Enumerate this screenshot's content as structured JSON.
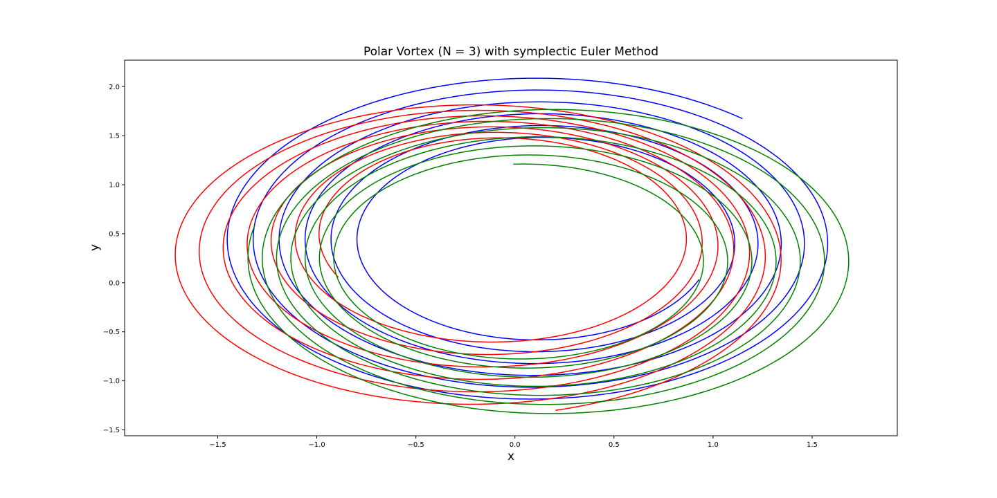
{
  "chart_data": {
    "type": "line",
    "title": "Polar Vortex (N = 3) with symplectic Euler Method",
    "xlabel": "x",
    "ylabel": "y",
    "xlim": [
      -1.97,
      1.93
    ],
    "ylim": [
      -1.56,
      2.27
    ],
    "xticks": [
      -1.5,
      -1.0,
      -0.5,
      0.0,
      0.5,
      1.0,
      1.5
    ],
    "xtick_labels": [
      "−1.5",
      "−1.0",
      "−0.5",
      "0.0",
      "0.5",
      "1.0",
      "1.5"
    ],
    "yticks": [
      -1.5,
      -1.0,
      -0.5,
      0.0,
      0.5,
      1.0,
      1.5,
      2.0
    ],
    "ytick_labels": [
      "−1.5",
      "−1.0",
      "−0.5",
      "0.0",
      "0.5",
      "1.0",
      "1.5",
      "2.0"
    ],
    "grid": false,
    "series": [
      {
        "color": "#0000ff",
        "start": [
          1.0,
          0.0
        ],
        "end": [
          1.18,
          1.71
        ],
        "turns": 6.13,
        "center_start": [
          0.13,
          0.42
        ],
        "center_end": [
          0.09,
          0.42
        ],
        "rx_start": 0.87,
        "rx_end": 1.59,
        "ry_start": 0.98,
        "ry_end": 1.68
      },
      {
        "color": "#ff0000",
        "start": [
          -1.0,
          0.0
        ],
        "end": [
          0.21,
          -1.32
        ],
        "turns": 6.47,
        "center_start": [
          -0.08,
          0.48
        ],
        "center_end": [
          -0.22,
          0.24
        ],
        "rx_start": 0.9,
        "rx_end": 1.58,
        "ry_start": 0.98,
        "ry_end": 1.6
      },
      {
        "color": "#008000",
        "start": [
          0.0,
          1.0
        ],
        "end": [
          -1.38,
          0.6
        ],
        "turns": 6.4,
        "center_start": [
          0.03,
          0.24
        ],
        "center_end": [
          0.2,
          0.24
        ],
        "rx_start": 0.89,
        "rx_end": 1.55,
        "ry_start": 0.97,
        "ry_end": 1.6
      }
    ]
  }
}
